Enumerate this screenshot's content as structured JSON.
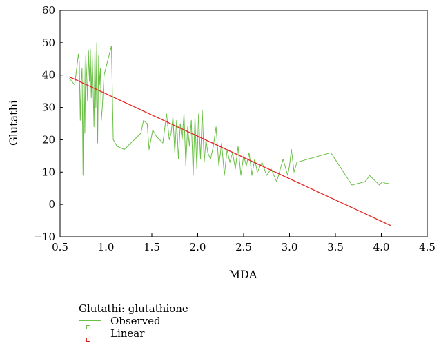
{
  "chart_data": {
    "type": "line",
    "xlabel": "MDA",
    "ylabel": "Glutathi",
    "xlim": [
      0.5,
      4.5
    ],
    "ylim": [
      -10,
      60
    ],
    "xticks": [
      0.5,
      1.0,
      1.5,
      2.0,
      2.5,
      3.0,
      3.5,
      4.0,
      4.5
    ],
    "xtick_labels": [
      "0.5",
      "1.0",
      "1.5",
      "2.0",
      "2.5",
      "3.0",
      "3.5",
      "4.0",
      "4.5"
    ],
    "yticks": [
      -10,
      0,
      10,
      20,
      30,
      40,
      50,
      60
    ],
    "ytick_labels": [
      "−10",
      "0",
      "10",
      "20",
      "30",
      "40",
      "50",
      "60"
    ],
    "grid": false,
    "legend_placement": "bottom-left",
    "legend_title": "Glutathi: glutathione",
    "colors": {
      "observed": "#6abf45",
      "linear": "#e52521"
    },
    "series": [
      {
        "name": "Observed",
        "x": [
          0.6,
          0.66,
          0.7,
          0.71,
          0.72,
          0.73,
          0.74,
          0.75,
          0.76,
          0.77,
          0.78,
          0.79,
          0.8,
          0.81,
          0.82,
          0.83,
          0.84,
          0.85,
          0.86,
          0.87,
          0.88,
          0.89,
          0.9,
          0.91,
          0.92,
          0.93,
          0.94,
          0.95,
          0.96,
          0.98,
          1.06,
          1.08,
          1.12,
          1.2,
          1.38,
          1.41,
          1.45,
          1.47,
          1.51,
          1.55,
          1.62,
          1.66,
          1.69,
          1.71,
          1.73,
          1.75,
          1.77,
          1.79,
          1.81,
          1.83,
          1.85,
          1.87,
          1.89,
          1.91,
          1.93,
          1.95,
          1.97,
          1.99,
          2.01,
          2.03,
          2.05,
          2.07,
          2.09,
          2.11,
          2.14,
          2.17,
          2.2,
          2.23,
          2.26,
          2.29,
          2.32,
          2.35,
          2.38,
          2.41,
          2.44,
          2.47,
          2.5,
          2.53,
          2.56,
          2.59,
          2.62,
          2.65,
          2.7,
          2.75,
          2.8,
          2.86,
          2.93,
          2.98,
          3.0,
          3.02,
          3.05,
          3.08,
          3.2,
          3.45,
          3.68,
          3.82,
          3.85,
          3.87,
          3.98,
          4.01,
          4.05,
          4.08
        ],
        "y": [
          39,
          37,
          46.5,
          44,
          26,
          38,
          42,
          9,
          44,
          22,
          46,
          40,
          32,
          47.5,
          38,
          48,
          33,
          46,
          36,
          24,
          48,
          30,
          50,
          19,
          46,
          37,
          42,
          26,
          30,
          40,
          49,
          20,
          18,
          17,
          22,
          26,
          25,
          17,
          23,
          21,
          19,
          28,
          20,
          22,
          27,
          16,
          26,
          14,
          25,
          20,
          28,
          12,
          24,
          18,
          26,
          9,
          27,
          11,
          28,
          14,
          29,
          13,
          20,
          16,
          14,
          18,
          24,
          12,
          19,
          9,
          17,
          13,
          16,
          11,
          18,
          9,
          15,
          12,
          16,
          9,
          14,
          10,
          13,
          9,
          11,
          7,
          14,
          9,
          12,
          17,
          10,
          13,
          14,
          16,
          6,
          7,
          8,
          9,
          6,
          7,
          6.5,
          6.5
        ]
      },
      {
        "name": "Linear",
        "x": [
          0.6,
          4.1
        ],
        "y": [
          39.5,
          -6.5
        ]
      }
    ]
  }
}
